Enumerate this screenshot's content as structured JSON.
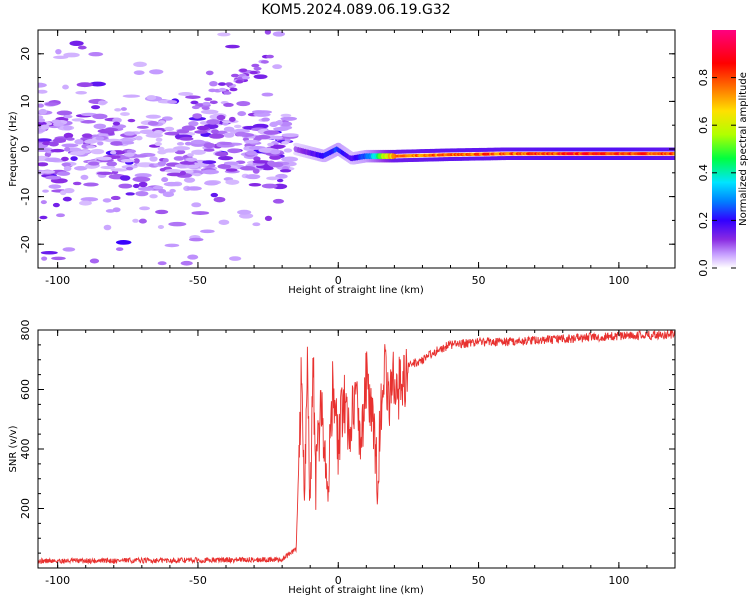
{
  "title": "KOM5.2024.089.06.19.G32",
  "chart_data": [
    {
      "type": "heatmap",
      "xlabel": "Height of straight line (km)",
      "ylabel": "Frequency (Hz)",
      "xlim": [
        -107,
        120
      ],
      "ylim": [
        -25,
        25
      ],
      "xticks": [
        -100,
        -50,
        0,
        50,
        100
      ],
      "yticks": [
        -20,
        -10,
        0,
        10,
        20
      ],
      "colorbar": {
        "label": "Normalized spectral amplitude",
        "range": [
          0.0,
          1.0
        ],
        "ticks": [
          "0.0",
          "0.2",
          "0.4",
          "0.6",
          "0.8"
        ],
        "colormap": [
          "#ffffff",
          "#c49bff",
          "#8a2be2",
          "#3200ff",
          "#0080ff",
          "#00e5ff",
          "#00ff40",
          "#b0ff00",
          "#ffe000",
          "#ff7000",
          "#ff0000",
          "#ff0080"
        ]
      },
      "ridge": {
        "x": [
          -15,
          -5,
          0,
          5,
          10,
          20,
          40,
          60,
          80,
          100,
          120
        ],
        "frequency": [
          0,
          -1.5,
          0,
          -2.0,
          -1.5,
          -1.5,
          -1.2,
          -1.0,
          -1.0,
          -1.0,
          -1.0
        ],
        "amplitude": [
          0.15,
          0.3,
          0.35,
          0.25,
          0.35,
          0.85,
          0.9,
          0.9,
          0.95,
          0.95,
          0.9
        ]
      }
    },
    {
      "type": "line",
      "xlabel": "Height of straight line (km)",
      "ylabel": "SNR (v/v)",
      "xlim": [
        -107,
        120
      ],
      "ylim": [
        0,
        800
      ],
      "xticks": [
        -100,
        -50,
        0,
        50,
        100
      ],
      "yticks": [
        200,
        400,
        600,
        800
      ],
      "series": [
        {
          "color": "#e8312f",
          "x": [
            -107,
            -60,
            -20,
            -15,
            -13,
            -12,
            -11,
            -10,
            -9,
            -8,
            -6,
            -4,
            -2,
            0,
            2,
            4,
            6,
            8,
            10,
            12,
            14,
            16,
            18,
            20,
            22,
            25,
            30,
            35,
            40,
            50,
            60,
            80,
            100,
            120
          ],
          "y": [
            20,
            22,
            25,
            60,
            680,
            200,
            650,
            150,
            700,
            300,
            560,
            250,
            600,
            400,
            580,
            450,
            600,
            420,
            640,
            500,
            300,
            680,
            560,
            640,
            600,
            680,
            700,
            730,
            750,
            760,
            760,
            770,
            780,
            785
          ]
        }
      ]
    }
  ]
}
